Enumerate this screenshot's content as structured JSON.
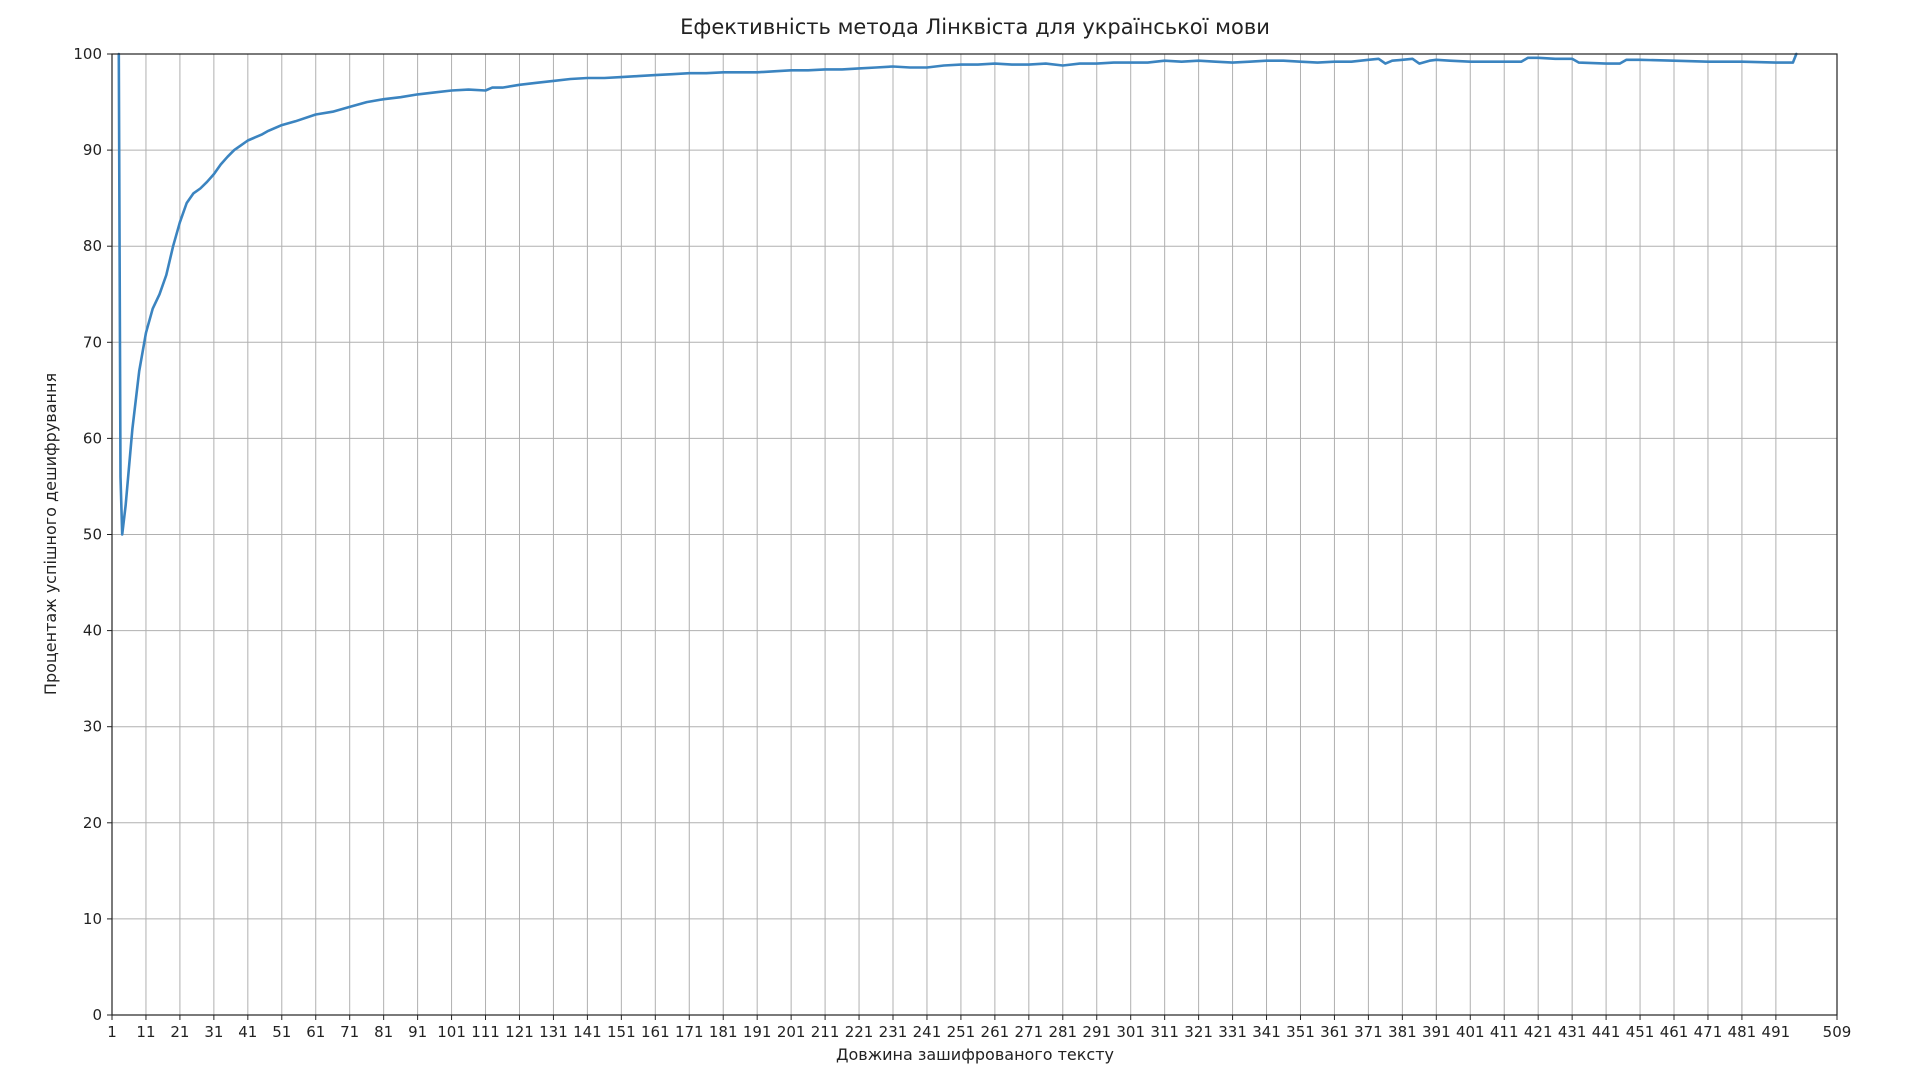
{
  "chart_data": {
    "type": "line",
    "title": "Ефективність метода Лінквіста для української мови",
    "xlabel": "Довжина зашифрованого тексту",
    "ylabel": "Процентаж успішного дешифрування",
    "xlim": [
      1,
      509
    ],
    "ylim": [
      0,
      100
    ],
    "x_ticks": [
      "1",
      "11",
      "21",
      "31",
      "41",
      "51",
      "61",
      "71",
      "81",
      "91",
      "101",
      "111",
      "121",
      "131",
      "141",
      "151",
      "161",
      "171",
      "181",
      "191",
      "201",
      "211",
      "221",
      "231",
      "241",
      "251",
      "261",
      "271",
      "281",
      "291",
      "301",
      "311",
      "321",
      "331",
      "341",
      "351",
      "361",
      "371",
      "381",
      "391",
      "401",
      "411",
      "421",
      "431",
      "441",
      "451",
      "461",
      "471",
      "481",
      "491",
      "509"
    ],
    "y_ticks": [
      "0",
      "10",
      "20",
      "30",
      "40",
      "50",
      "60",
      "70",
      "80",
      "90",
      "100"
    ],
    "grid": true,
    "line_color": "#3b84c0",
    "series": [
      {
        "x": [
          3,
          3.5,
          4,
          5,
          7,
          9,
          11,
          13,
          15,
          17,
          19,
          21,
          23,
          25,
          27,
          29,
          31,
          33,
          35,
          37,
          39,
          41,
          43,
          45,
          47,
          51,
          55,
          61,
          66,
          71,
          76,
          81,
          86,
          91,
          96,
          101,
          106,
          111,
          113,
          116,
          121,
          126,
          131,
          136,
          141,
          146,
          151,
          156,
          161,
          166,
          171,
          176,
          181,
          186,
          191,
          196,
          201,
          206,
          211,
          216,
          221,
          226,
          231,
          236,
          241,
          246,
          251,
          256,
          261,
          266,
          271,
          276,
          281,
          286,
          291,
          296,
          301,
          306,
          311,
          316,
          321,
          326,
          331,
          336,
          341,
          346,
          351,
          356,
          361,
          366,
          371,
          374,
          376,
          378,
          381,
          384,
          386,
          389,
          391,
          395,
          401,
          411,
          416,
          418,
          421,
          426,
          431,
          433,
          441,
          445,
          447,
          451,
          461,
          471,
          481,
          491,
          496,
          497
        ],
        "y": [
          100,
          56,
          50,
          53,
          61,
          67,
          71,
          73.5,
          75,
          77,
          80,
          82.5,
          84.5,
          85.5,
          86,
          86.7,
          87.5,
          88.5,
          89.3,
          90,
          90.5,
          91,
          91.3,
          91.6,
          92,
          92.6,
          93,
          93.7,
          94,
          94.5,
          95,
          95.3,
          95.5,
          95.8,
          96,
          96.2,
          96.3,
          96.2,
          96.5,
          96.5,
          96.8,
          97,
          97.2,
          97.4,
          97.5,
          97.5,
          97.6,
          97.7,
          97.8,
          97.9,
          98,
          98,
          98.1,
          98.1,
          98.1,
          98.2,
          98.3,
          98.3,
          98.4,
          98.4,
          98.5,
          98.6,
          98.7,
          98.6,
          98.6,
          98.8,
          98.9,
          98.9,
          99,
          98.9,
          98.9,
          99,
          98.8,
          99,
          99,
          99.1,
          99.1,
          99.1,
          99.3,
          99.2,
          99.3,
          99.2,
          99.1,
          99.2,
          99.3,
          99.3,
          99.2,
          99.1,
          99.2,
          99.2,
          99.4,
          99.5,
          99,
          99.3,
          99.4,
          99.5,
          99,
          99.3,
          99.4,
          99.3,
          99.2,
          99.2,
          99.2,
          99.6,
          99.6,
          99.5,
          99.5,
          99.1,
          99,
          99,
          99.4,
          99.4,
          99.3,
          99.2,
          99.2,
          99.1,
          99.1,
          100
        ]
      }
    ]
  }
}
